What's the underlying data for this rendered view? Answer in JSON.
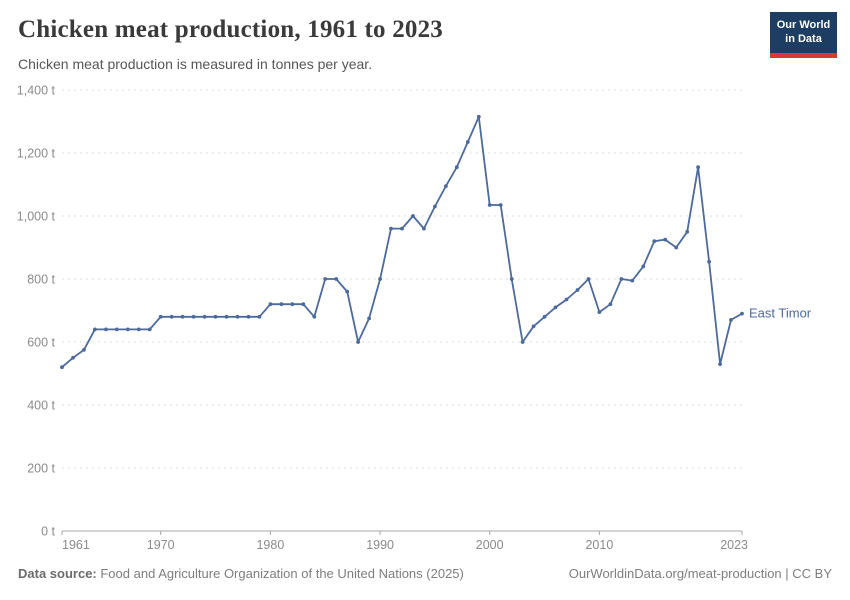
{
  "header": {
    "title": "Chicken meat production, 1961 to 2023",
    "subtitle": "Chicken meat production is measured in tonnes per year.",
    "logo": {
      "line1": "Our World",
      "line2": "in Data",
      "bg_color": "#1d3d63",
      "accent_color": "#d63b2f"
    }
  },
  "chart_data": {
    "type": "line",
    "title": "Chicken meat production, 1961 to 2023",
    "entity": "East Timor",
    "series_label": "East Timor",
    "unit": "t",
    "line_color": "#4c6a9c",
    "grid_color": "#dcdcdc",
    "axis_color": "#a9a9a9",
    "tick_label_color": "#8b8b8b",
    "grid": "horizontal dashed",
    "legend_position": "right of last point",
    "ylim": [
      0,
      1400
    ],
    "y_ticks": [
      0,
      200,
      400,
      600,
      800,
      1000,
      1200,
      1400
    ],
    "x_ticks": [
      1961,
      1970,
      1980,
      1990,
      2000,
      2010,
      2023
    ],
    "years": [
      1961,
      1962,
      1963,
      1964,
      1965,
      1966,
      1967,
      1968,
      1969,
      1970,
      1971,
      1972,
      1973,
      1974,
      1975,
      1976,
      1977,
      1978,
      1979,
      1980,
      1981,
      1982,
      1983,
      1984,
      1985,
      1986,
      1987,
      1988,
      1989,
      1990,
      1991,
      1992,
      1993,
      1994,
      1995,
      1996,
      1997,
      1998,
      1999,
      2000,
      2001,
      2002,
      2003,
      2004,
      2005,
      2006,
      2007,
      2008,
      2009,
      2010,
      2011,
      2012,
      2013,
      2014,
      2015,
      2016,
      2017,
      2018,
      2019,
      2020,
      2021,
      2022,
      2023
    ],
    "values": [
      520,
      550,
      575,
      640,
      640,
      640,
      640,
      640,
      640,
      680,
      680,
      680,
      680,
      680,
      680,
      680,
      680,
      680,
      680,
      720,
      720,
      720,
      720,
      680,
      800,
      800,
      760,
      600,
      675,
      800,
      960,
      960,
      1000,
      960,
      1030,
      1095,
      1155,
      1235,
      1315,
      1035,
      1035,
      800,
      600,
      650,
      680,
      710,
      735,
      765,
      800,
      695,
      720,
      800,
      795,
      840,
      920,
      925,
      900,
      950,
      1155,
      855,
      530,
      670,
      690
    ]
  },
  "footer": {
    "datasource_label": "Data source:",
    "datasource_text": " Food and Agriculture Organization of the United Nations (2025)",
    "link_text": "OurWorldinData.org/meat-production | CC BY"
  }
}
